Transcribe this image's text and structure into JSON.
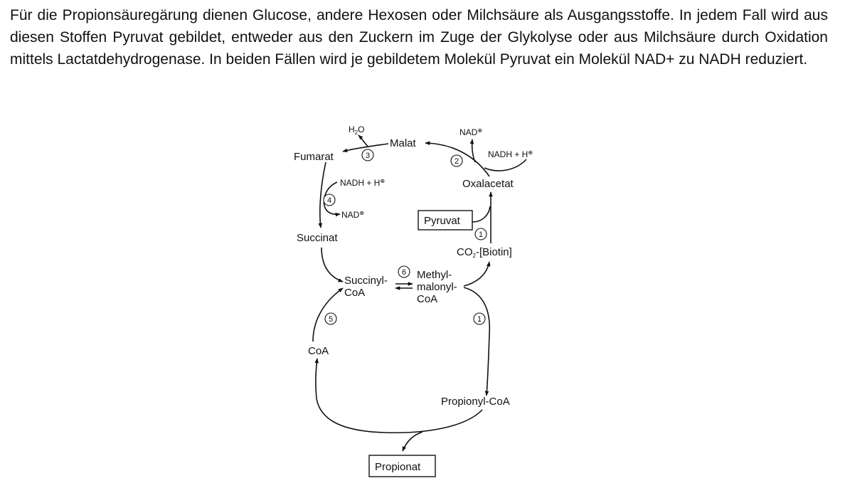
{
  "paragraph": "Für die Propionsäuregärung dienen Glucose, andere Hexosen oder Milchsäure als Ausgangsstoffe. In jedem Fall wird aus diesen Stoffen Pyruvat gebildet, entweder aus den Zuckern im Zuge der Glykolyse oder aus Milchsäure durch Oxidation mittels Lactatdehydrogenase. In beiden Fällen wird je gebildetem Molekül Pyruvat ein Molekül NAD+ zu NADH reduziert.",
  "diagram": {
    "compounds": {
      "malat": "Malat",
      "fumarat": "Fumarat",
      "succinat": "Succinat",
      "succinyl_coa_1": "Succinyl-",
      "succinyl_coa_2": "CoA",
      "methylmalonyl_coa_1": "Methyl-",
      "methylmalonyl_coa_2": "malonyl-",
      "methylmalonyl_coa_3": "CoA",
      "oxalacetat": "Oxalacetat",
      "pyruvat": "Pyruvat",
      "co2_biotin_prefix": "CO",
      "co2_biotin_sub": "2",
      "co2_biotin_suffix": "-[Biotin]",
      "propionyl_coa": "Propionyl-CoA",
      "coa": "CoA",
      "propionat": "Propionat"
    },
    "cofactors": {
      "h2o_h": "H",
      "h2o_sub": "2",
      "h2o_o": "O",
      "nad_top": "NAD",
      "nad_top_charge": "⊕",
      "nadh_top": "NADH + H",
      "nadh_top_charge": "⊕",
      "nadh_left": "NADH + H",
      "nadh_left_charge": "⊕",
      "nad_left": "NAD",
      "nad_left_charge": "⊕"
    },
    "enzymes": {
      "e1_upper": "1",
      "e1_lower": "1",
      "e2": "2",
      "e3": "3",
      "e4": "4",
      "e5": "5",
      "e6": "6"
    }
  }
}
